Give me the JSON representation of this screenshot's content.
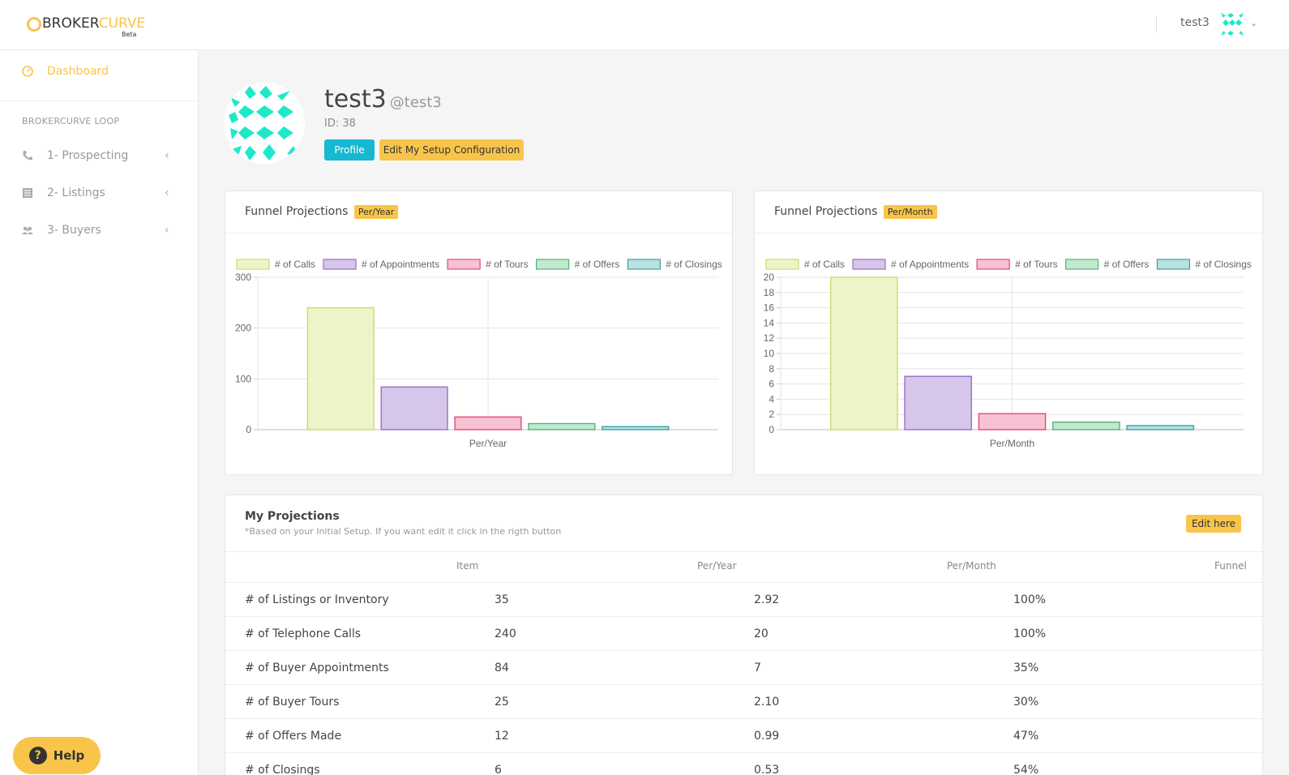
{
  "header": {
    "logo_part1": "BROKER",
    "logo_part2": "CURVE",
    "logo_badge": "Beta",
    "username": "test3",
    "avatar_icon": "identicon-avatar",
    "menu_icon": "chevron-down-icon"
  },
  "sidebar": {
    "dashboard": {
      "label": "Dashboard",
      "icon": "dashboard-gauge-icon"
    },
    "section_title": "BROKERCURVE LOOP",
    "items": [
      {
        "label": "1- Prospecting",
        "icon": "phone-icon"
      },
      {
        "label": "2- Listings",
        "icon": "list-icon"
      },
      {
        "label": "3- Buyers",
        "icon": "users-icon"
      }
    ]
  },
  "help": {
    "label": "Help"
  },
  "profile": {
    "name": "test3",
    "handle": "@test3",
    "id_text": "ID: 38",
    "profile_button": "Profile",
    "setup_button": "Edit My Setup Configuration"
  },
  "colors": {
    "accent": "#f8c54a",
    "info": "#17b8d1",
    "avatar": "#1de9c9"
  },
  "charts": {
    "yearly": {
      "title": "Funnel Projections",
      "badge": "Per/Year"
    },
    "monthly": {
      "title": "Funnel Projections",
      "badge": "Per/Month"
    }
  },
  "chart_data": [
    {
      "type": "bar",
      "xlabel": "Per/Year",
      "categories": [
        "Per/Year"
      ],
      "ylim": [
        0,
        300
      ],
      "yticks": [
        0,
        100,
        200,
        300
      ],
      "legend_position": "top",
      "grid": true,
      "series": [
        {
          "name": "# of Calls",
          "values": [
            240
          ],
          "fill": "#eef4c8",
          "stroke": "#c8dc6e"
        },
        {
          "name": "# of Appointments",
          "values": [
            84
          ],
          "fill": "#d6c6ea",
          "stroke": "#9a6cc9"
        },
        {
          "name": "# of Tours",
          "values": [
            25
          ],
          "fill": "#f7c2d2",
          "stroke": "#e5487a"
        },
        {
          "name": "# of Offers",
          "values": [
            12
          ],
          "fill": "#c2e8d0",
          "stroke": "#56b37a"
        },
        {
          "name": "# of Closings",
          "values": [
            6
          ],
          "fill": "#b9e1e0",
          "stroke": "#3aa3a3"
        }
      ]
    },
    {
      "type": "bar",
      "xlabel": "Per/Month",
      "categories": [
        "Per/Month"
      ],
      "ylim": [
        0,
        20
      ],
      "yticks": [
        0,
        2,
        4,
        6,
        8,
        10,
        12,
        14,
        16,
        18,
        20
      ],
      "legend_position": "top",
      "grid": true,
      "series": [
        {
          "name": "# of Calls",
          "values": [
            20
          ],
          "fill": "#eef4c8",
          "stroke": "#c8dc6e"
        },
        {
          "name": "# of Appointments",
          "values": [
            7
          ],
          "fill": "#d6c6ea",
          "stroke": "#9a6cc9"
        },
        {
          "name": "# of Tours",
          "values": [
            2.1
          ],
          "fill": "#f7c2d2",
          "stroke": "#e5487a"
        },
        {
          "name": "# of Offers",
          "values": [
            0.99
          ],
          "fill": "#c2e8d0",
          "stroke": "#56b37a"
        },
        {
          "name": "# of Closings",
          "values": [
            0.53
          ],
          "fill": "#b9e1e0",
          "stroke": "#3aa3a3"
        }
      ]
    }
  ],
  "projections": {
    "title": "My Projections",
    "subtitle": "*Based on your Initial Setup. If you want edit it click in the rigth button",
    "edit_button": "Edit here",
    "columns": [
      "Item",
      "Per/Year",
      "Per/Month",
      "Funnel"
    ],
    "rows": [
      {
        "item": "# of Listings or Inventory",
        "per_year": "35",
        "per_month": "2.92",
        "funnel": "100%"
      },
      {
        "item": "# of Telephone Calls",
        "per_year": "240",
        "per_month": "20",
        "funnel": "100%"
      },
      {
        "item": "# of Buyer Appointments",
        "per_year": "84",
        "per_month": "7",
        "funnel": "35%"
      },
      {
        "item": "# of Buyer Tours",
        "per_year": "25",
        "per_month": "2.10",
        "funnel": "30%"
      },
      {
        "item": "# of Offers Made",
        "per_year": "12",
        "per_month": "0.99",
        "funnel": "47%"
      },
      {
        "item": "# of Closings",
        "per_year": "6",
        "per_month": "0.53",
        "funnel": "54%"
      }
    ]
  }
}
